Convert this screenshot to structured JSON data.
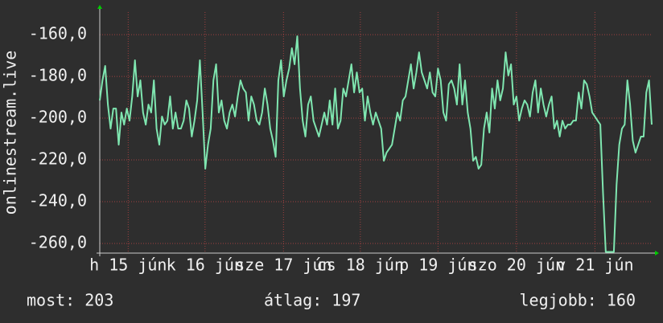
{
  "chart_data": {
    "type": "line",
    "y_label": "onlinestream.live",
    "color": "#7fe6b0",
    "grid": true,
    "ylim": [
      -264.6,
      -149.2
    ],
    "yticks": [
      {
        "value": -160,
        "label": "-160,0"
      },
      {
        "value": -180,
        "label": "-180,0"
      },
      {
        "value": -200,
        "label": "-200,0"
      },
      {
        "value": -220,
        "label": "-220,0"
      },
      {
        "value": -240,
        "label": "-240,0"
      },
      {
        "value": -260,
        "label": "-260,0"
      }
    ],
    "xlim": [
      0,
      204
    ],
    "xticks": [
      {
        "value": 10.5,
        "label": "h 15 jún"
      },
      {
        "value": 38.9,
        "label": "k 16 jún"
      },
      {
        "value": 67.9,
        "label": "sze 17 jún"
      },
      {
        "value": 96.3,
        "label": "cs 18 jún"
      },
      {
        "value": 125,
        "label": "p 19 jún"
      },
      {
        "value": 154,
        "label": "szo 20 jún"
      },
      {
        "value": 183,
        "label": "v 21 jún"
      }
    ],
    "values": [
      -191.5,
      -181.9,
      -175,
      -193.5,
      -205,
      -195.4,
      -195.4,
      -212.7,
      -197.3,
      -203.1,
      -195.4,
      -201.2,
      -189.6,
      -172.3,
      -189.6,
      -181.9,
      -197.3,
      -203.1,
      -193.5,
      -197.3,
      -181.9,
      -205,
      -212.7,
      -199.2,
      -203.1,
      -201.2,
      -189.6,
      -205,
      -197.3,
      -205,
      -205,
      -201.2,
      -191.5,
      -195.4,
      -208.8,
      -201.2,
      -191.5,
      -172.3,
      -197.3,
      -224.2,
      -212.7,
      -205,
      -181.9,
      -174.2,
      -197.3,
      -191.5,
      -201.2,
      -205,
      -197.3,
      -193.5,
      -199.2,
      -189.6,
      -181.9,
      -185.8,
      -187.7,
      -201.2,
      -189.6,
      -193.5,
      -201.2,
      -203.1,
      -197.3,
      -185.8,
      -193.5,
      -205,
      -210.8,
      -218.5,
      -181.9,
      -172.3,
      -189.6,
      -181.9,
      -176.2,
      -166.5,
      -174.2,
      -160.8,
      -185.8,
      -201.2,
      -208.8,
      -193.5,
      -189.6,
      -201.2,
      -205,
      -208.8,
      -203.1,
      -197.3,
      -203.1,
      -191.5,
      -203.1,
      -185.8,
      -205,
      -201.2,
      -185.8,
      -189.6,
      -181.9,
      -174.2,
      -187.7,
      -178.1,
      -187.7,
      -185.8,
      -201.2,
      -189.6,
      -197.3,
      -203.1,
      -197.3,
      -201.2,
      -205,
      -220.4,
      -216.5,
      -214.6,
      -212.7,
      -205,
      -197.3,
      -201.2,
      -191.5,
      -189.6,
      -181.9,
      -174.2,
      -185.8,
      -178.1,
      -168.5,
      -178.1,
      -181.9,
      -185.8,
      -178.1,
      -187.7,
      -189.6,
      -176.2,
      -181.9,
      -197.3,
      -201.2,
      -183.8,
      -181.9,
      -185.8,
      -193.5,
      -174.2,
      -193.5,
      -181.9,
      -197.3,
      -205,
      -220.4,
      -218.5,
      -224.2,
      -222.3,
      -205,
      -197.3,
      -206.9,
      -185.8,
      -195.4,
      -181.9,
      -191.5,
      -185.8,
      -168.5,
      -179.6,
      -174.2,
      -193.5,
      -189.6,
      -201.2,
      -195.4,
      -191.5,
      -193.5,
      -199.2,
      -187.7,
      -181.9,
      -197.3,
      -185.8,
      -193.5,
      -199.2,
      -193.5,
      -189.6,
      -205,
      -201.2,
      -208.8,
      -201.2,
      -205,
      -203.1,
      -203.1,
      -201.2,
      -201.2,
      -187.7,
      -195.4,
      -181.9,
      -183.8,
      -189.6,
      -197.3,
      -199.2,
      -201.2,
      -203.1,
      -235.8,
      -264,
      -264,
      -264,
      -264,
      -231.9,
      -212.7,
      -205,
      -203.1,
      -181.9,
      -193.5,
      -210.8,
      -216.5,
      -212.7,
      -208.8,
      -208.8,
      -187.7,
      -181.9,
      -203.1
    ],
    "stats": [
      "most: 203",
      "átlag: 197",
      "legjobb: 160"
    ]
  }
}
